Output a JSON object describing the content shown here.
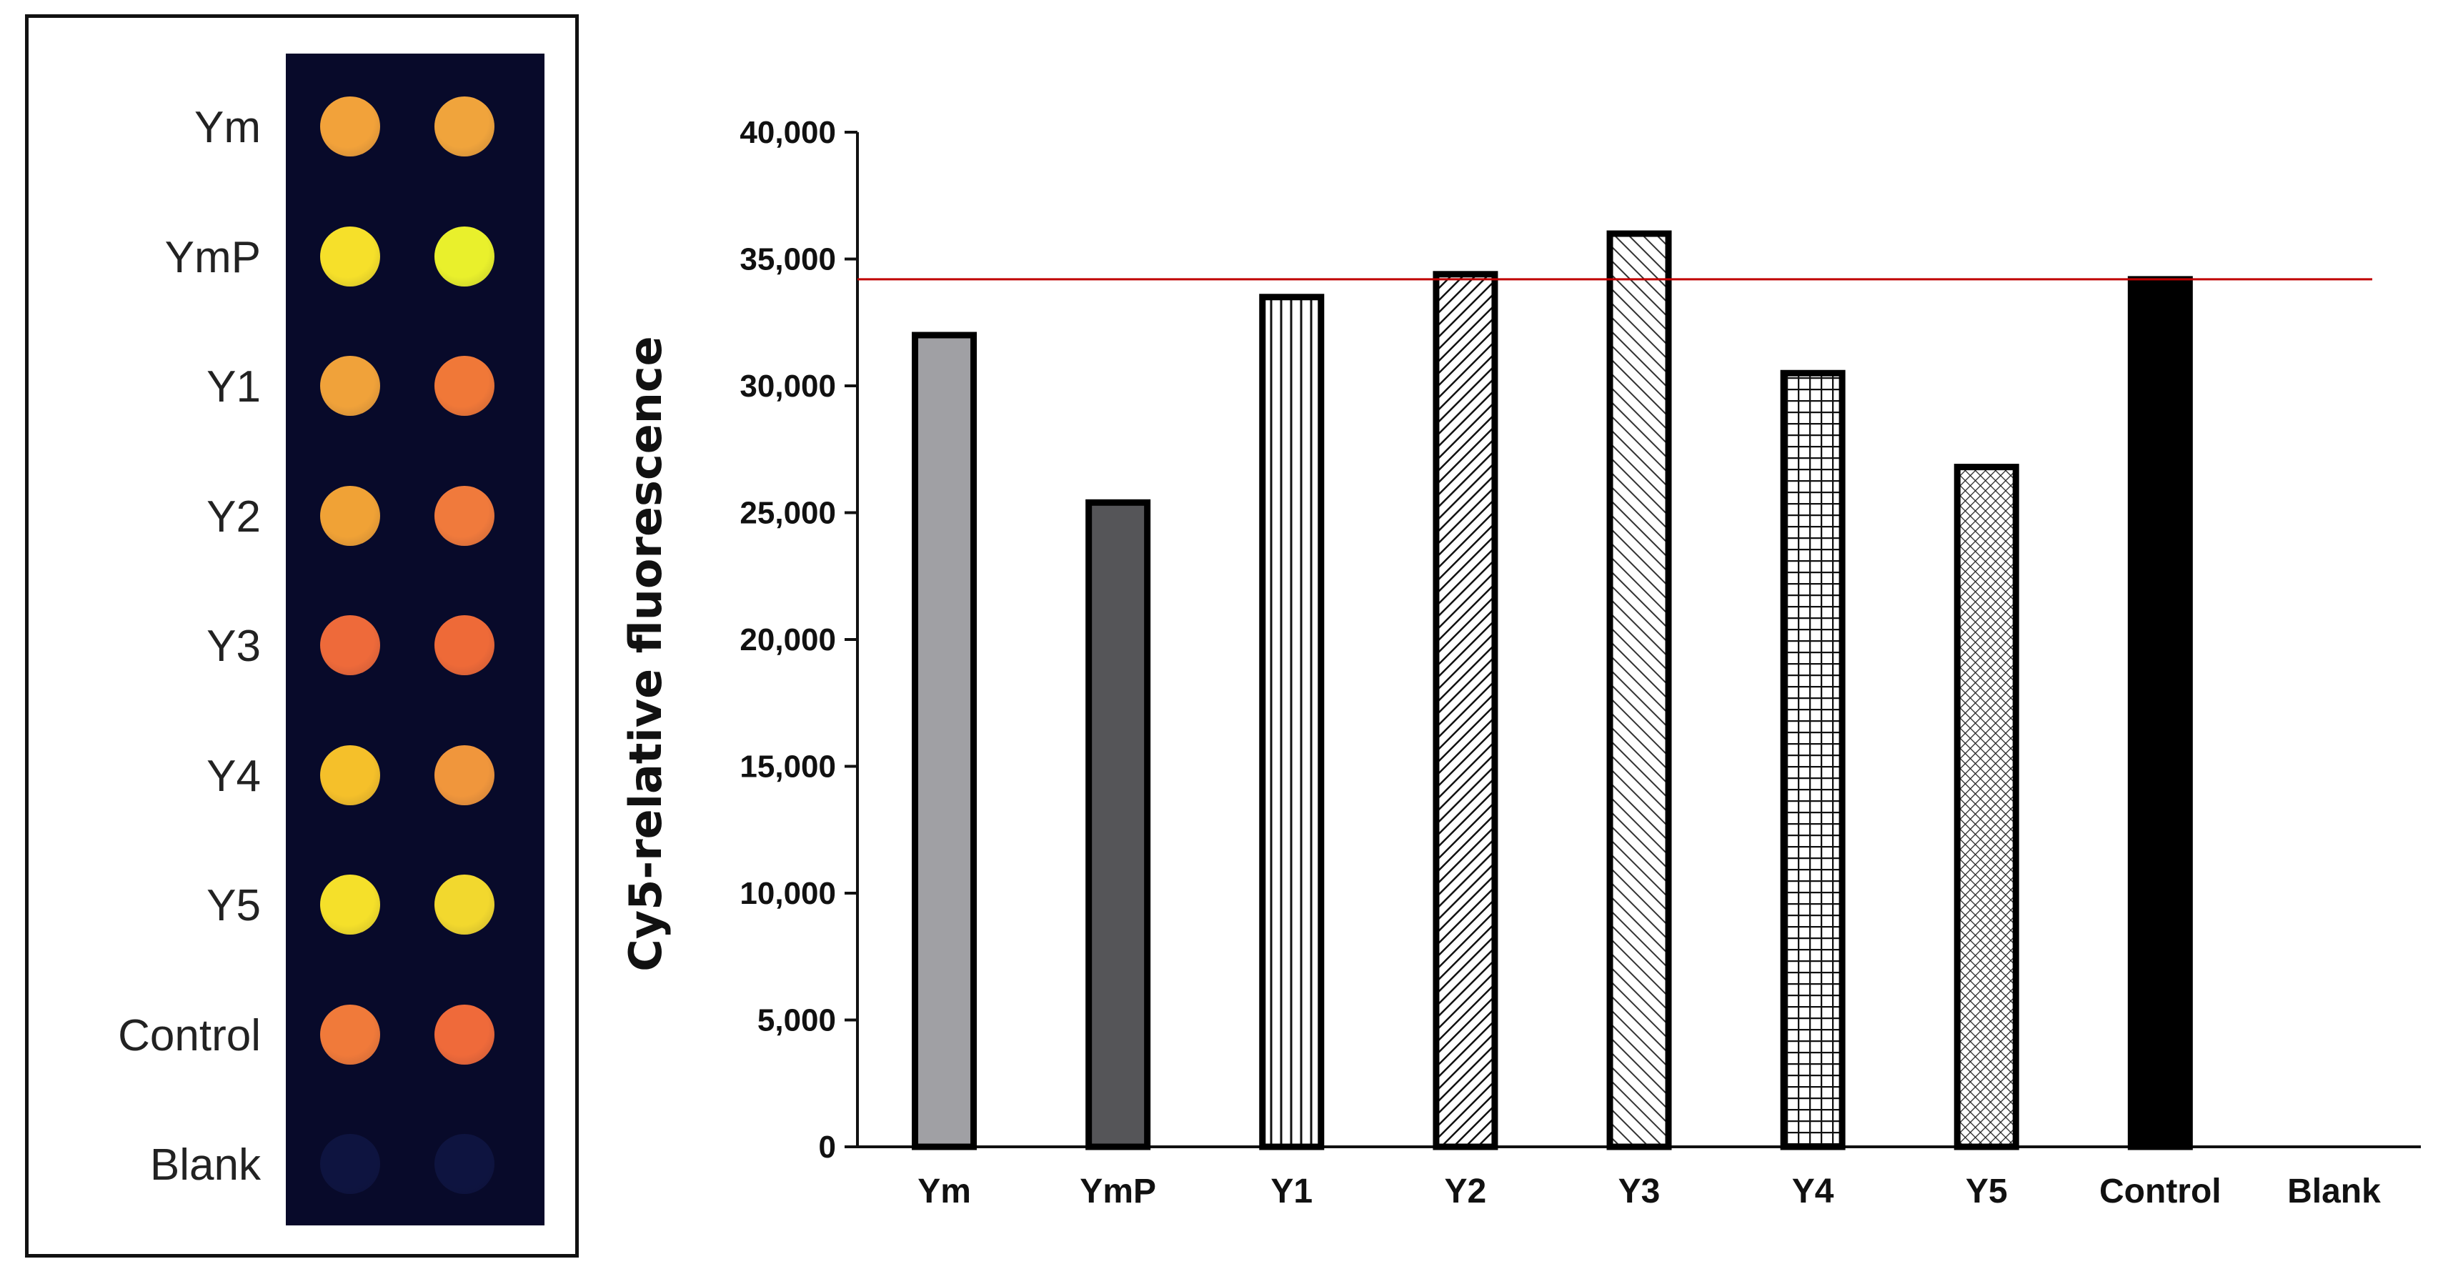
{
  "array_panel": {
    "background_color": "#080a2a",
    "rows": [
      {
        "label": "Ym",
        "spots": [
          "#f2a23a",
          "#f0a43c"
        ]
      },
      {
        "label": "YmP",
        "spots": [
          "#f6e02a",
          "#e9f02c"
        ]
      },
      {
        "label": "Y1",
        "spots": [
          "#f0a23a",
          "#f07838"
        ]
      },
      {
        "label": "Y2",
        "spots": [
          "#f0a236",
          "#f07a3c"
        ]
      },
      {
        "label": "Y3",
        "spots": [
          "#ee6a3a",
          "#ee6a38"
        ]
      },
      {
        "label": "Y4",
        "spots": [
          "#f5c02a",
          "#f0963c"
        ]
      },
      {
        "label": "Y5",
        "spots": [
          "#f5e02a",
          "#f2d82e"
        ]
      },
      {
        "label": "Control",
        "spots": [
          "#f07a3a",
          "#ef6a3a"
        ]
      },
      {
        "label": "Blank",
        "spots": [
          "#0e1440",
          "#0e1440"
        ]
      }
    ]
  },
  "chart_data": {
    "type": "bar",
    "categories": [
      "Ym",
      "YmP",
      "Y1",
      "Y2",
      "Y3",
      "Y4",
      "Y5",
      "Control",
      "Blank"
    ],
    "values": [
      32000,
      25400,
      33500,
      34400,
      36000,
      30500,
      26800,
      34200,
      0
    ],
    "ylabel": "Cy5-relative fluorescence",
    "ylim": [
      0,
      40000
    ],
    "yticks": [
      0,
      5000,
      10000,
      15000,
      20000,
      25000,
      30000,
      35000,
      40000
    ],
    "ytick_labels": [
      "0",
      "5,000",
      "10,000",
      "15,000",
      "20,000",
      "25,000",
      "30,000",
      "35,000",
      "40,000"
    ],
    "reference_line": {
      "value": 34200,
      "color": "#c00000"
    },
    "bar_styles": [
      {
        "fill": "#a0a0a4",
        "pattern": "solid"
      },
      {
        "fill": "#555558",
        "pattern": "solid"
      },
      {
        "fill": "#ffffff",
        "pattern": "vertical-lines"
      },
      {
        "fill": "#ffffff",
        "pattern": "diagonal-dense"
      },
      {
        "fill": "#ffffff",
        "pattern": "diagonal-wide"
      },
      {
        "fill": "#ffffff",
        "pattern": "grid"
      },
      {
        "fill": "#ffffff",
        "pattern": "crosshatch"
      },
      {
        "fill": "#000000",
        "pattern": "solid"
      },
      {
        "fill": "#ffffff",
        "pattern": "none"
      }
    ],
    "grid": false,
    "legend": "none"
  }
}
